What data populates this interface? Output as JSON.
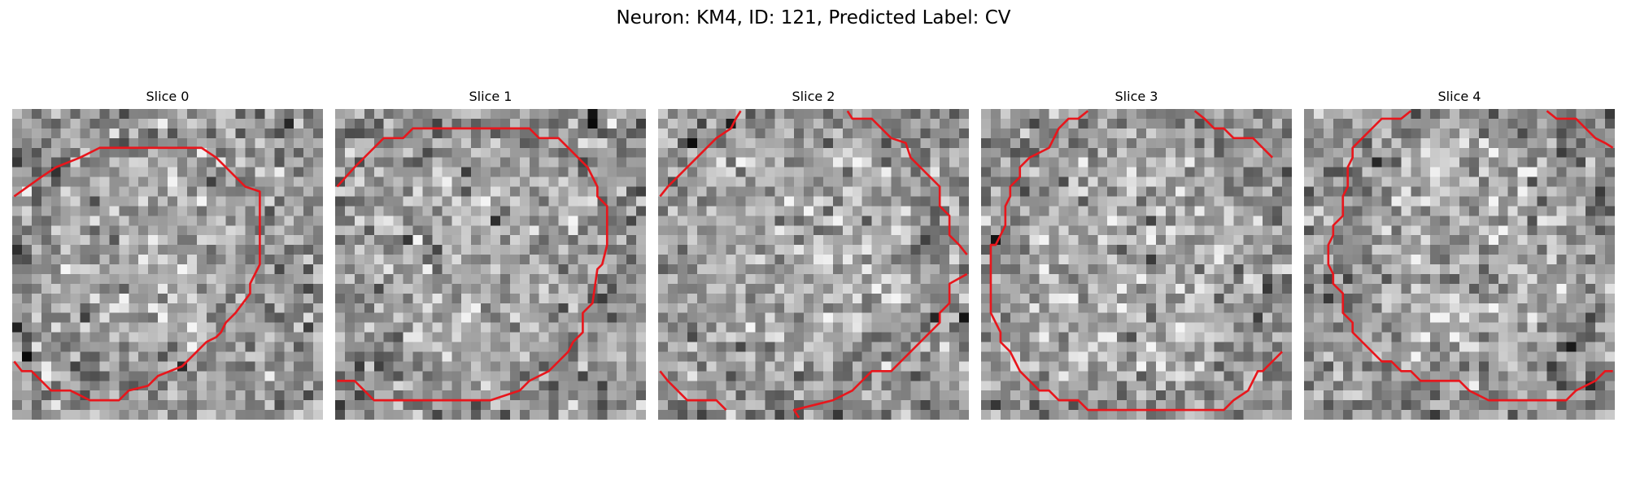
{
  "figure": {
    "title": "Neuron: KM4, ID: 121, Predicted Label: CV"
  },
  "panels": [
    {
      "title": "Slice 0"
    },
    {
      "title": "Slice 1"
    },
    {
      "title": "Slice 2"
    },
    {
      "title": "Slice 3"
    },
    {
      "title": "Slice 4"
    }
  ],
  "colors": {
    "contour": "#e8161c",
    "colormap": "gray"
  }
}
